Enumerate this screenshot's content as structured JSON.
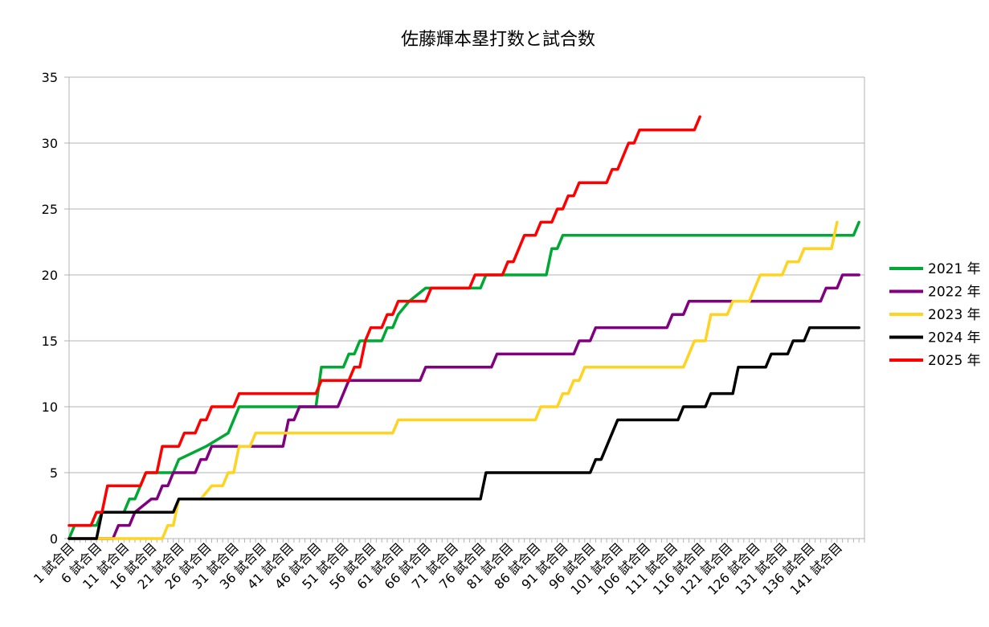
{
  "chart_data": {
    "type": "line",
    "title": "佐藤輝本塁打数と試合数",
    "xlabel": "",
    "ylabel": "",
    "ylim": [
      0,
      35
    ],
    "yticks": [
      0,
      5,
      10,
      15,
      20,
      25,
      30,
      35
    ],
    "x_count": 145,
    "x_tick_labels": [
      "1 試合目",
      "6 試合目",
      "11 試合目",
      "16 試合目",
      "21 試合目",
      "26 試合目",
      "31 試合目",
      "36 試合目",
      "41 試合目",
      "46 試合目",
      "51 試合目",
      "56 試合目",
      "61 試合目",
      "66 試合目",
      "71 試合目",
      "76 試合目",
      "81 試合目",
      "86 試合目",
      "91 試合目",
      "96 試合目",
      "101 試合目",
      "106 試合目",
      "111 試合目",
      "116 試合目",
      "121 試合目",
      "126 試合目",
      "131 試合目",
      "136 試合目",
      "141 試合目"
    ],
    "grid": true,
    "legend_position": "right",
    "series": [
      {
        "name": "2021 年",
        "color": "#00a933",
        "points": [
          [
            1,
            0
          ],
          [
            2,
            1
          ],
          [
            6,
            1
          ],
          [
            7,
            2
          ],
          [
            11,
            2
          ],
          [
            12,
            3
          ],
          [
            13,
            3
          ],
          [
            14,
            4
          ],
          [
            15,
            5
          ],
          [
            20,
            5
          ],
          [
            21,
            6
          ],
          [
            26,
            7
          ],
          [
            30,
            8
          ],
          [
            31,
            9
          ],
          [
            32,
            10
          ],
          [
            46,
            10
          ],
          [
            47,
            13
          ],
          [
            51,
            13
          ],
          [
            52,
            14
          ],
          [
            53,
            14
          ],
          [
            54,
            15
          ],
          [
            58,
            15
          ],
          [
            59,
            16
          ],
          [
            60,
            16
          ],
          [
            61,
            17
          ],
          [
            63,
            18
          ],
          [
            66,
            19
          ],
          [
            76,
            19
          ],
          [
            77,
            20
          ],
          [
            88,
            20
          ],
          [
            89,
            22
          ],
          [
            90,
            22
          ],
          [
            91,
            23
          ],
          [
            144,
            23
          ],
          [
            145,
            24
          ]
        ]
      },
      {
        "name": "2022 年",
        "color": "#800080",
        "points": [
          [
            1,
            0
          ],
          [
            9,
            0
          ],
          [
            10,
            1
          ],
          [
            12,
            1
          ],
          [
            13,
            2
          ],
          [
            16,
            3
          ],
          [
            17,
            3
          ],
          [
            18,
            4
          ],
          [
            19,
            4
          ],
          [
            20,
            5
          ],
          [
            24,
            5
          ],
          [
            25,
            6
          ],
          [
            26,
            6
          ],
          [
            27,
            7
          ],
          [
            35,
            7
          ],
          [
            36,
            7
          ],
          [
            40,
            7
          ],
          [
            41,
            9
          ],
          [
            42,
            9
          ],
          [
            43,
            10
          ],
          [
            50,
            10
          ],
          [
            51,
            11
          ],
          [
            52,
            12
          ],
          [
            65,
            12
          ],
          [
            66,
            13
          ],
          [
            78,
            13
          ],
          [
            79,
            14
          ],
          [
            93,
            14
          ],
          [
            94,
            15
          ],
          [
            96,
            15
          ],
          [
            97,
            16
          ],
          [
            110,
            16
          ],
          [
            111,
            17
          ],
          [
            113,
            17
          ],
          [
            114,
            18
          ],
          [
            133,
            18
          ],
          [
            134,
            18
          ],
          [
            136,
            18
          ],
          [
            137,
            18
          ],
          [
            138,
            18
          ],
          [
            139,
            19
          ],
          [
            141,
            19
          ],
          [
            142,
            20
          ],
          [
            145,
            20
          ]
        ]
      },
      {
        "name": "2023 年",
        "color": "#ffd320",
        "points": [
          [
            1,
            0
          ],
          [
            18,
            0
          ],
          [
            19,
            1
          ],
          [
            20,
            1
          ],
          [
            21,
            3
          ],
          [
            25,
            3
          ],
          [
            27,
            4
          ],
          [
            29,
            4
          ],
          [
            30,
            5
          ],
          [
            31,
            5
          ],
          [
            32,
            7
          ],
          [
            34,
            7
          ],
          [
            35,
            8
          ],
          [
            60,
            8
          ],
          [
            61,
            9
          ],
          [
            86,
            9
          ],
          [
            87,
            10
          ],
          [
            90,
            10
          ],
          [
            91,
            11
          ],
          [
            92,
            11
          ],
          [
            93,
            12
          ],
          [
            94,
            12
          ],
          [
            95,
            13
          ],
          [
            113,
            13
          ],
          [
            114,
            14
          ],
          [
            115,
            15
          ],
          [
            117,
            15
          ],
          [
            118,
            17
          ],
          [
            121,
            17
          ],
          [
            122,
            18
          ],
          [
            125,
            18
          ],
          [
            127,
            20
          ],
          [
            131,
            20
          ],
          [
            132,
            21
          ],
          [
            134,
            21
          ],
          [
            135,
            22
          ],
          [
            139,
            22
          ],
          [
            140,
            22
          ],
          [
            141,
            24
          ]
        ]
      },
      {
        "name": "2024 年",
        "color": "#000000",
        "points": [
          [
            1,
            0
          ],
          [
            6,
            0
          ],
          [
            7,
            2
          ],
          [
            20,
            2
          ],
          [
            21,
            3
          ],
          [
            76,
            3
          ],
          [
            77,
            5
          ],
          [
            96,
            5
          ],
          [
            97,
            6
          ],
          [
            98,
            6
          ],
          [
            101,
            9
          ],
          [
            112,
            9
          ],
          [
            113,
            10
          ],
          [
            117,
            10
          ],
          [
            118,
            11
          ],
          [
            122,
            11
          ],
          [
            123,
            13
          ],
          [
            128,
            13
          ],
          [
            129,
            14
          ],
          [
            132,
            14
          ],
          [
            133,
            15
          ],
          [
            135,
            15
          ],
          [
            136,
            16
          ],
          [
            145,
            16
          ]
        ]
      },
      {
        "name": "2025 年",
        "color": "#ff0000",
        "points": [
          [
            1,
            1
          ],
          [
            5,
            1
          ],
          [
            6,
            2
          ],
          [
            7,
            2
          ],
          [
            8,
            4
          ],
          [
            14,
            4
          ],
          [
            15,
            5
          ],
          [
            17,
            5
          ],
          [
            18,
            7
          ],
          [
            21,
            7
          ],
          [
            22,
            8
          ],
          [
            24,
            8
          ],
          [
            25,
            9
          ],
          [
            26,
            9
          ],
          [
            27,
            10
          ],
          [
            31,
            10
          ],
          [
            32,
            11
          ],
          [
            46,
            11
          ],
          [
            47,
            12
          ],
          [
            52,
            12
          ],
          [
            53,
            13
          ],
          [
            54,
            13
          ],
          [
            55,
            15
          ],
          [
            56,
            16
          ],
          [
            58,
            16
          ],
          [
            59,
            17
          ],
          [
            60,
            17
          ],
          [
            61,
            18
          ],
          [
            66,
            18
          ],
          [
            67,
            19
          ],
          [
            74,
            19
          ],
          [
            75,
            20
          ],
          [
            80,
            20
          ],
          [
            81,
            21
          ],
          [
            82,
            21
          ],
          [
            84,
            23
          ],
          [
            86,
            23
          ],
          [
            87,
            24
          ],
          [
            89,
            24
          ],
          [
            90,
            25
          ],
          [
            91,
            25
          ],
          [
            92,
            26
          ],
          [
            93,
            26
          ],
          [
            94,
            27
          ],
          [
            99,
            27
          ],
          [
            100,
            28
          ],
          [
            101,
            28
          ],
          [
            103,
            30
          ],
          [
            104,
            30
          ],
          [
            105,
            31
          ],
          [
            115,
            31
          ],
          [
            116,
            32
          ]
        ]
      }
    ]
  }
}
